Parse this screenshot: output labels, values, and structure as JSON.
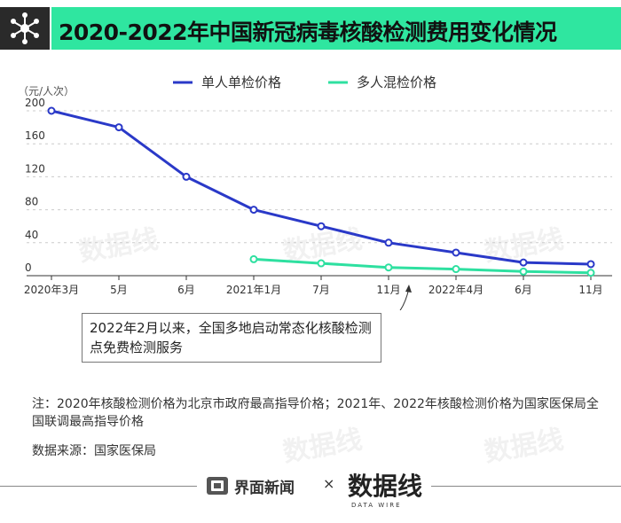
{
  "header": {
    "title": "2020-2022年中国新冠病毒核酸检测费用变化情况",
    "logo_icon": "virus-network-icon"
  },
  "chart_data": {
    "type": "line",
    "x": [
      "2020年3月",
      "5月",
      "6月",
      "2021年1月",
      "7月",
      "11月",
      "2022年4月",
      "6月",
      "11月"
    ],
    "series": [
      {
        "name": "单人单检价格",
        "color": "#2a39c8",
        "values": [
          200,
          180,
          120,
          80,
          60,
          40,
          28,
          16,
          14
        ]
      },
      {
        "name": "多人混检价格",
        "color": "#2ee0a0",
        "values": [
          null,
          null,
          null,
          20,
          15,
          10,
          8,
          5,
          3.5
        ]
      }
    ],
    "ylabel": "（元/人次）",
    "yticks": [
      0,
      40,
      80,
      120,
      160,
      200
    ],
    "ylim": [
      0,
      200
    ],
    "grid": "horizontal dashed",
    "legend_position": "top"
  },
  "annotation": {
    "text": "2022年2月以来，全国多地启动常态化核酸检测点免费检测服务",
    "target_category_index": 6
  },
  "note": "注：2020年核酸检测价格为北京市政府最高指导价格；2021年、2022年核酸检测价格为国家医保局全国联调最高指导价格",
  "source": "数据来源：国家医保局",
  "footer": {
    "brand1": "界面新闻",
    "separator": "×",
    "brand2": "数据线",
    "brand2_sub": "DATA WIRE"
  },
  "watermark": "数据线"
}
